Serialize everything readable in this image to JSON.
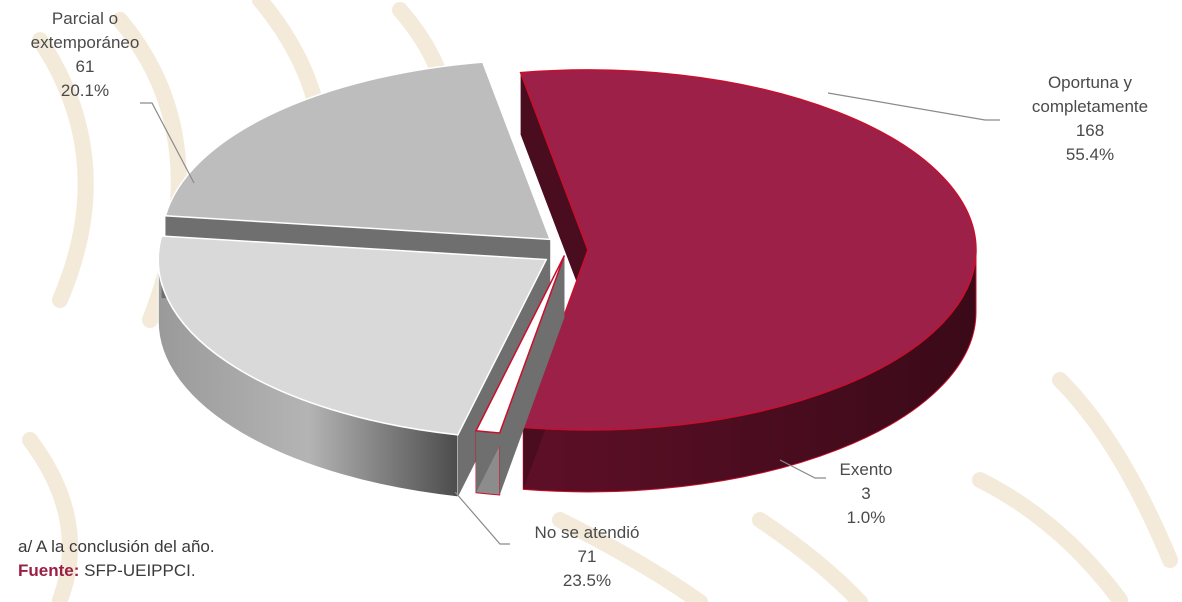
{
  "chart_data": {
    "type": "pie",
    "title": "",
    "three_d": true,
    "exploded": true,
    "slices": [
      {
        "label": "Oportuna y completamente",
        "value": 168,
        "percent": "55.4%",
        "color": "#9c2047"
      },
      {
        "label": "Exento",
        "value": 3,
        "percent": "1.0%",
        "color": "#ffffff"
      },
      {
        "label": "No se atendió",
        "value": 71,
        "percent": "23.5%",
        "color": "#d9d9d9"
      },
      {
        "label": "Parcial o extemporáneo",
        "value": 61,
        "percent": "20.1%",
        "color": "#bdbdbd"
      }
    ],
    "data_labels": [
      {
        "lines": [
          "Oportuna y",
          "completamente",
          "168",
          "55.4%"
        ]
      },
      {
        "lines": [
          "Exento",
          "3",
          "1.0%"
        ]
      },
      {
        "lines": [
          "No se atendió",
          "71",
          "23.5%"
        ]
      },
      {
        "lines": [
          "Parcial o",
          "extemporáneo",
          "61",
          "20.1%"
        ]
      }
    ]
  },
  "notes": {
    "footnote": "a/ A la conclusión del año.",
    "source_label": "Fuente:",
    "source_value": " SFP-UEIPPCI."
  },
  "colors": {
    "background_watermark": "#f4ead9",
    "accent": "#9c2047",
    "label_text": "#4a4a4a"
  }
}
